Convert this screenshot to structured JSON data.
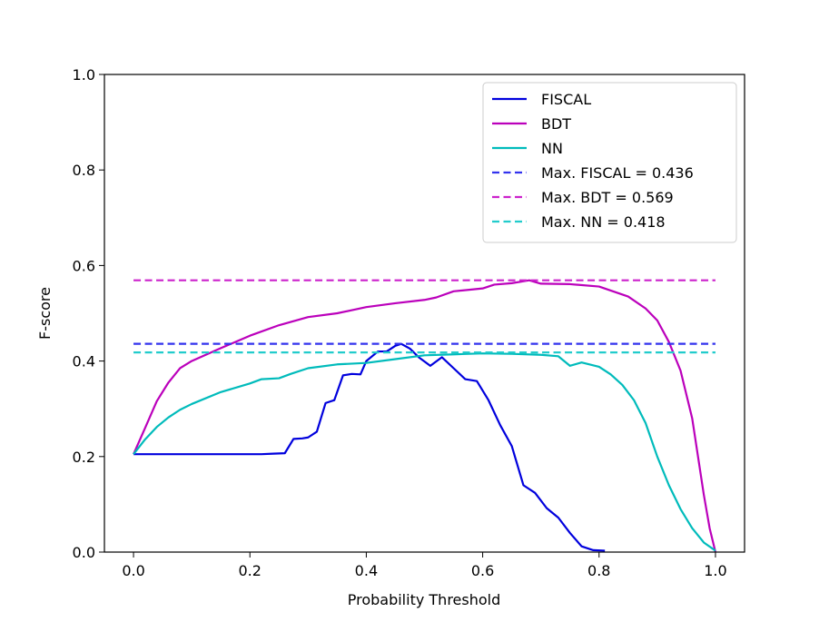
{
  "chart_data": {
    "type": "line",
    "title": "",
    "xlabel": "Probability Threshold",
    "ylabel": "F-score",
    "xlim": [
      -0.05,
      1.05
    ],
    "ylim": [
      0.0,
      1.0
    ],
    "xticks": [
      0.0,
      0.2,
      0.4,
      0.6,
      0.8,
      1.0
    ],
    "xtick_labels": [
      "0.0",
      "0.2",
      "0.4",
      "0.6",
      "0.8",
      "1.0"
    ],
    "yticks": [
      0.0,
      0.2,
      0.4,
      0.6,
      0.8,
      1.0
    ],
    "ytick_labels": [
      "0.0",
      "0.2",
      "0.4",
      "0.6",
      "0.8",
      "1.0"
    ],
    "grid": false,
    "legend_position": "top-right",
    "series": [
      {
        "name": "FISCAL",
        "color": "#0000dd",
        "style": "solid",
        "x": [
          0.0,
          0.02,
          0.05,
          0.1,
          0.15,
          0.2,
          0.22,
          0.24,
          0.26,
          0.275,
          0.29,
          0.3,
          0.315,
          0.33,
          0.345,
          0.36,
          0.375,
          0.39,
          0.4,
          0.42,
          0.435,
          0.45,
          0.46,
          0.475,
          0.49,
          0.51,
          0.53,
          0.55,
          0.57,
          0.59,
          0.61,
          0.63,
          0.65,
          0.67,
          0.69,
          0.71,
          0.73,
          0.75,
          0.77,
          0.79,
          0.81
        ],
        "values": [
          0.205,
          0.205,
          0.205,
          0.205,
          0.205,
          0.205,
          0.205,
          0.206,
          0.207,
          0.237,
          0.238,
          0.24,
          0.252,
          0.312,
          0.318,
          0.37,
          0.373,
          0.372,
          0.4,
          0.42,
          0.42,
          0.432,
          0.436,
          0.426,
          0.408,
          0.39,
          0.408,
          0.385,
          0.362,
          0.358,
          0.318,
          0.266,
          0.222,
          0.14,
          0.124,
          0.092,
          0.072,
          0.04,
          0.012,
          0.004,
          0.003
        ]
      },
      {
        "name": "BDT",
        "color": "#bb00bb",
        "style": "solid",
        "x": [
          0.0,
          0.02,
          0.04,
          0.06,
          0.08,
          0.1,
          0.15,
          0.2,
          0.25,
          0.3,
          0.35,
          0.4,
          0.45,
          0.5,
          0.52,
          0.55,
          0.6,
          0.62,
          0.65,
          0.68,
          0.7,
          0.75,
          0.8,
          0.85,
          0.88,
          0.9,
          0.92,
          0.94,
          0.96,
          0.97,
          0.98,
          0.99,
          1.0
        ],
        "values": [
          0.205,
          0.26,
          0.316,
          0.355,
          0.385,
          0.4,
          0.427,
          0.453,
          0.475,
          0.492,
          0.5,
          0.513,
          0.521,
          0.528,
          0.533,
          0.546,
          0.552,
          0.56,
          0.563,
          0.569,
          0.562,
          0.561,
          0.556,
          0.535,
          0.51,
          0.485,
          0.44,
          0.38,
          0.28,
          0.2,
          0.12,
          0.05,
          0.0
        ]
      },
      {
        "name": "NN",
        "color": "#00bbbb",
        "style": "solid",
        "x": [
          0.0,
          0.02,
          0.04,
          0.06,
          0.08,
          0.1,
          0.15,
          0.2,
          0.22,
          0.25,
          0.27,
          0.3,
          0.35,
          0.4,
          0.45,
          0.5,
          0.55,
          0.6,
          0.65,
          0.7,
          0.73,
          0.75,
          0.77,
          0.8,
          0.82,
          0.84,
          0.86,
          0.88,
          0.9,
          0.92,
          0.94,
          0.96,
          0.98,
          1.0
        ],
        "values": [
          0.205,
          0.236,
          0.262,
          0.282,
          0.298,
          0.31,
          0.335,
          0.353,
          0.362,
          0.364,
          0.373,
          0.385,
          0.393,
          0.396,
          0.404,
          0.412,
          0.414,
          0.416,
          0.415,
          0.413,
          0.41,
          0.39,
          0.397,
          0.388,
          0.372,
          0.35,
          0.318,
          0.27,
          0.2,
          0.14,
          0.09,
          0.05,
          0.02,
          0.003
        ]
      },
      {
        "name": "Max. FISCAL = 0.436",
        "color": "#3333ee",
        "style": "dashed",
        "x": [
          0.0,
          1.0
        ],
        "values": [
          0.436,
          0.436
        ]
      },
      {
        "name": "Max. BDT = 0.569",
        "color": "#cc22cc",
        "style": "dashed",
        "x": [
          0.0,
          1.0
        ],
        "values": [
          0.569,
          0.569
        ]
      },
      {
        "name": "Max. NN = 0.418",
        "color": "#22cccc",
        "style": "dashed",
        "x": [
          0.0,
          1.0
        ],
        "values": [
          0.418,
          0.418
        ]
      }
    ]
  }
}
